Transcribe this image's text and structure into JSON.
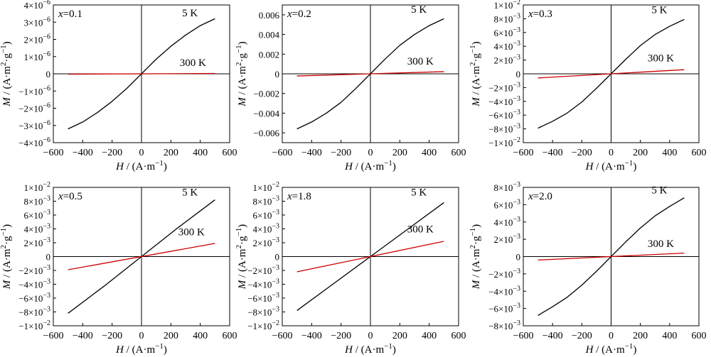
{
  "figure": {
    "xlabel_italic": "H",
    "xlabel_rest": " / (A·m",
    "xlabel_sup": "−1",
    "xlabel_close": ")",
    "ylabel_italic": "M",
    "ylabel_rest": " / (A·m",
    "ylabel_sup1": "2",
    "ylabel_mid": "·g",
    "ylabel_sup2": "−1",
    "ylabel_close": ")"
  },
  "chart_data": [
    {
      "type": "line",
      "panel_label": "x=0.1",
      "xlim": [
        -600,
        600
      ],
      "ylim": [
        -4e-06,
        4e-06
      ],
      "x_ticks": [
        -600,
        -400,
        -200,
        0,
        200,
        400,
        600
      ],
      "y_ticks": [
        -4e-06,
        -3e-06,
        -2e-06,
        -1e-06,
        0,
        1e-06,
        2e-06,
        3e-06,
        4e-06
      ],
      "y_tick_format": "sci",
      "y_exp": -6,
      "series": [
        {
          "name": "5 K",
          "color": "#000000",
          "x": [
            -500,
            -400,
            -300,
            -200,
            -100,
            0,
            100,
            200,
            300,
            400,
            500
          ],
          "y": [
            -3.2e-06,
            -2.8e-06,
            -2.25e-06,
            -1.6e-06,
            -8.5e-07,
            0,
            8.5e-07,
            1.6e-06,
            2.25e-06,
            2.8e-06,
            3.2e-06
          ]
        },
        {
          "name": "300 K",
          "color": "#cc0000",
          "x": [
            -500,
            500
          ],
          "y": [
            -2e-08,
            2e-08
          ]
        }
      ],
      "annotations": [
        {
          "text": "5 K",
          "x": 330,
          "y": 3.35e-06
        },
        {
          "text": "300 K",
          "x": 350,
          "y": 4.5e-07
        }
      ]
    },
    {
      "type": "line",
      "panel_label": "x=0.2",
      "xlim": [
        -600,
        600
      ],
      "ylim": [
        -0.007,
        0.007
      ],
      "x_ticks": [
        -600,
        -400,
        -200,
        0,
        200,
        400,
        600
      ],
      "y_ticks": [
        -0.006,
        -0.004,
        -0.002,
        0,
        0.002,
        0.004,
        0.006
      ],
      "y_tick_format": "decimal",
      "series": [
        {
          "name": "5 K",
          "color": "#000000",
          "x": [
            -500,
            -400,
            -300,
            -200,
            -100,
            0,
            100,
            200,
            300,
            400,
            500
          ],
          "y": [
            -0.0056,
            -0.0049,
            -0.004,
            -0.0029,
            -0.0015,
            0,
            0.0015,
            0.0029,
            0.004,
            0.0049,
            0.0056
          ]
        },
        {
          "name": "300 K",
          "color": "#cc0000",
          "x": [
            -500,
            500
          ],
          "y": [
            -0.00022,
            0.00022
          ]
        }
      ],
      "annotations": [
        {
          "text": "5 K",
          "x": 330,
          "y": 0.0062
        },
        {
          "text": "300 K",
          "x": 340,
          "y": 0.00095
        }
      ]
    },
    {
      "type": "line",
      "panel_label": "x=0.3",
      "xlim": [
        -600,
        600
      ],
      "ylim": [
        -0.01,
        0.01
      ],
      "x_ticks": [
        -600,
        -400,
        -200,
        0,
        200,
        400,
        600
      ],
      "y_ticks": [
        -0.01,
        -0.008,
        -0.006,
        -0.004,
        -0.002,
        0,
        0.002,
        0.004,
        0.006,
        0.008,
        0.01
      ],
      "y_tick_format": "sci",
      "y_exp": -3,
      "series": [
        {
          "name": "5 K",
          "color": "#000000",
          "x": [
            -500,
            -400,
            -300,
            -200,
            -100,
            0,
            100,
            200,
            300,
            400,
            500
          ],
          "y": [
            -0.0079,
            -0.0069,
            -0.0057,
            -0.0041,
            -0.0021,
            0,
            0.0021,
            0.0041,
            0.0057,
            0.0069,
            0.0079
          ]
        },
        {
          "name": "300 K",
          "color": "#cc0000",
          "x": [
            -500,
            500
          ],
          "y": [
            -0.0006,
            0.0006
          ]
        }
      ],
      "annotations": [
        {
          "text": "5 K",
          "x": 330,
          "y": 0.0088
        },
        {
          "text": "300 K",
          "x": 340,
          "y": 0.0018
        }
      ]
    },
    {
      "type": "line",
      "panel_label": "x=0.5",
      "xlim": [
        -600,
        600
      ],
      "ylim": [
        -0.01,
        0.01
      ],
      "x_ticks": [
        -600,
        -400,
        -200,
        0,
        200,
        400,
        600
      ],
      "y_ticks": [
        -0.01,
        -0.008,
        -0.006,
        -0.004,
        -0.002,
        0,
        0.002,
        0.004,
        0.006,
        0.008,
        0.01
      ],
      "y_tick_format": "sci",
      "y_exp": -3,
      "series": [
        {
          "name": "5 K",
          "color": "#000000",
          "x": [
            -500,
            -250,
            0,
            250,
            500
          ],
          "y": [
            -0.0082,
            -0.0042,
            0,
            0.0042,
            0.0082
          ]
        },
        {
          "name": "300 K",
          "color": "#cc0000",
          "x": [
            -500,
            500
          ],
          "y": [
            -0.0019,
            0.0019
          ]
        }
      ],
      "annotations": [
        {
          "text": "5 K",
          "x": 330,
          "y": 0.0088
        },
        {
          "text": "300 K",
          "x": 340,
          "y": 0.0031
        }
      ]
    },
    {
      "type": "line",
      "panel_label": "x=1.8",
      "xlim": [
        -600,
        600
      ],
      "ylim": [
        -0.01,
        0.01
      ],
      "x_ticks": [
        -600,
        -400,
        -200,
        0,
        200,
        400,
        600
      ],
      "y_ticks": [
        -0.01,
        -0.008,
        -0.006,
        -0.004,
        -0.002,
        0,
        0.002,
        0.004,
        0.006,
        0.008,
        0.01
      ],
      "y_tick_format": "sci",
      "y_exp": -3,
      "series": [
        {
          "name": "5 K",
          "color": "#000000",
          "x": [
            -500,
            -250,
            0,
            250,
            500
          ],
          "y": [
            -0.0078,
            -0.0039,
            0,
            0.0039,
            0.0078
          ]
        },
        {
          "name": "300 K",
          "color": "#cc0000",
          "x": [
            -500,
            500
          ],
          "y": [
            -0.0022,
            0.0022
          ]
        }
      ],
      "annotations": [
        {
          "text": "5 K",
          "x": 330,
          "y": 0.0088
        },
        {
          "text": "300 K",
          "x": 340,
          "y": 0.0035
        }
      ]
    },
    {
      "type": "line",
      "panel_label": "x=2.0",
      "xlim": [
        -600,
        600
      ],
      "ylim": [
        -0.008,
        0.008
      ],
      "x_ticks": [
        -600,
        -400,
        -200,
        0,
        200,
        400,
        600
      ],
      "y_ticks": [
        -0.008,
        -0.006,
        -0.004,
        -0.002,
        0,
        0.002,
        0.004,
        0.006,
        0.008
      ],
      "y_tick_format": "sci",
      "y_exp": -3,
      "series": [
        {
          "name": "5 K",
          "color": "#000000",
          "x": [
            -500,
            -400,
            -300,
            -200,
            -100,
            0,
            100,
            200,
            300,
            400,
            500
          ],
          "y": [
            -0.0068,
            -0.0058,
            -0.0047,
            -0.0033,
            -0.0017,
            0,
            0.0017,
            0.0033,
            0.0047,
            0.0058,
            0.0068
          ]
        },
        {
          "name": "300 K",
          "color": "#cc0000",
          "x": [
            -500,
            500
          ],
          "y": [
            -0.0004,
            0.0004
          ]
        }
      ],
      "annotations": [
        {
          "text": "5 K",
          "x": 330,
          "y": 0.0073
        },
        {
          "text": "300 K",
          "x": 340,
          "y": 0.0011
        }
      ]
    }
  ]
}
